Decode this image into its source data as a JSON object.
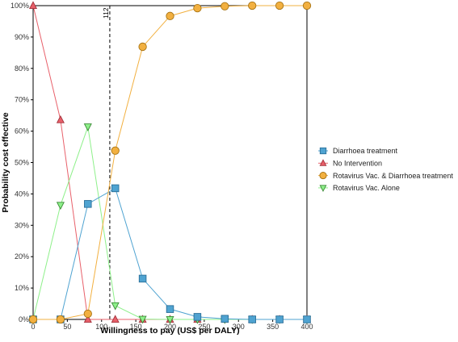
{
  "chart_data": {
    "type": "line",
    "title": "",
    "xlabel": "Willingness to pay (US$ per DALY)",
    "ylabel": "Probability cost effective",
    "xlim": [
      0,
      400
    ],
    "ylim": [
      0,
      100
    ],
    "x_ticks": [
      0,
      50,
      100,
      150,
      200,
      250,
      300,
      350,
      400
    ],
    "x_tick_labels": [
      "0",
      "50",
      "100",
      "150",
      "200",
      "250",
      "300",
      "350",
      "400"
    ],
    "y_ticks": [
      0,
      10,
      20,
      30,
      40,
      50,
      60,
      70,
      80,
      90,
      100
    ],
    "y_tick_labels": [
      "0%",
      "10%",
      "20%",
      "30%",
      "40%",
      "50%",
      "60%",
      "70%",
      "80%",
      "90%",
      "100%"
    ],
    "grid": false,
    "legend_position": "right",
    "x": [
      0,
      40,
      80,
      120,
      160,
      200,
      240,
      280,
      320,
      360,
      400
    ],
    "series": [
      {
        "name": "Diarrhoea  treatment",
        "marker": "square",
        "color": "#4fa3d1",
        "stroke": "#2a6f99",
        "values": [
          0,
          0,
          36.8,
          41.8,
          13,
          3.3,
          0.8,
          0.2,
          0,
          0,
          0
        ]
      },
      {
        "name": "No Intervention",
        "marker": "triangle-up",
        "color": "#e8606a",
        "stroke": "#a3323c",
        "values": [
          100,
          63.6,
          0,
          0,
          0,
          0,
          0,
          0,
          0,
          0,
          0
        ]
      },
      {
        "name": "Rotavirus Vac. & Diarrhoea treatment",
        "marker": "circle",
        "color": "#f2b040",
        "stroke": "#a87414",
        "values": [
          0,
          0,
          1.8,
          53.8,
          86.9,
          96.7,
          99.2,
          99.8,
          100,
          100,
          100
        ]
      },
      {
        "name": "Rotavirus Vac. Alone",
        "marker": "triangle-down",
        "color": "#8ef08a",
        "stroke": "#3a8a36",
        "values": [
          0,
          36.4,
          61.4,
          4.4,
          0.1,
          0,
          0,
          0,
          0,
          0,
          0
        ]
      }
    ],
    "annotations": [
      {
        "type": "vertical-dashed-line",
        "x": 112,
        "label": "112"
      }
    ]
  }
}
